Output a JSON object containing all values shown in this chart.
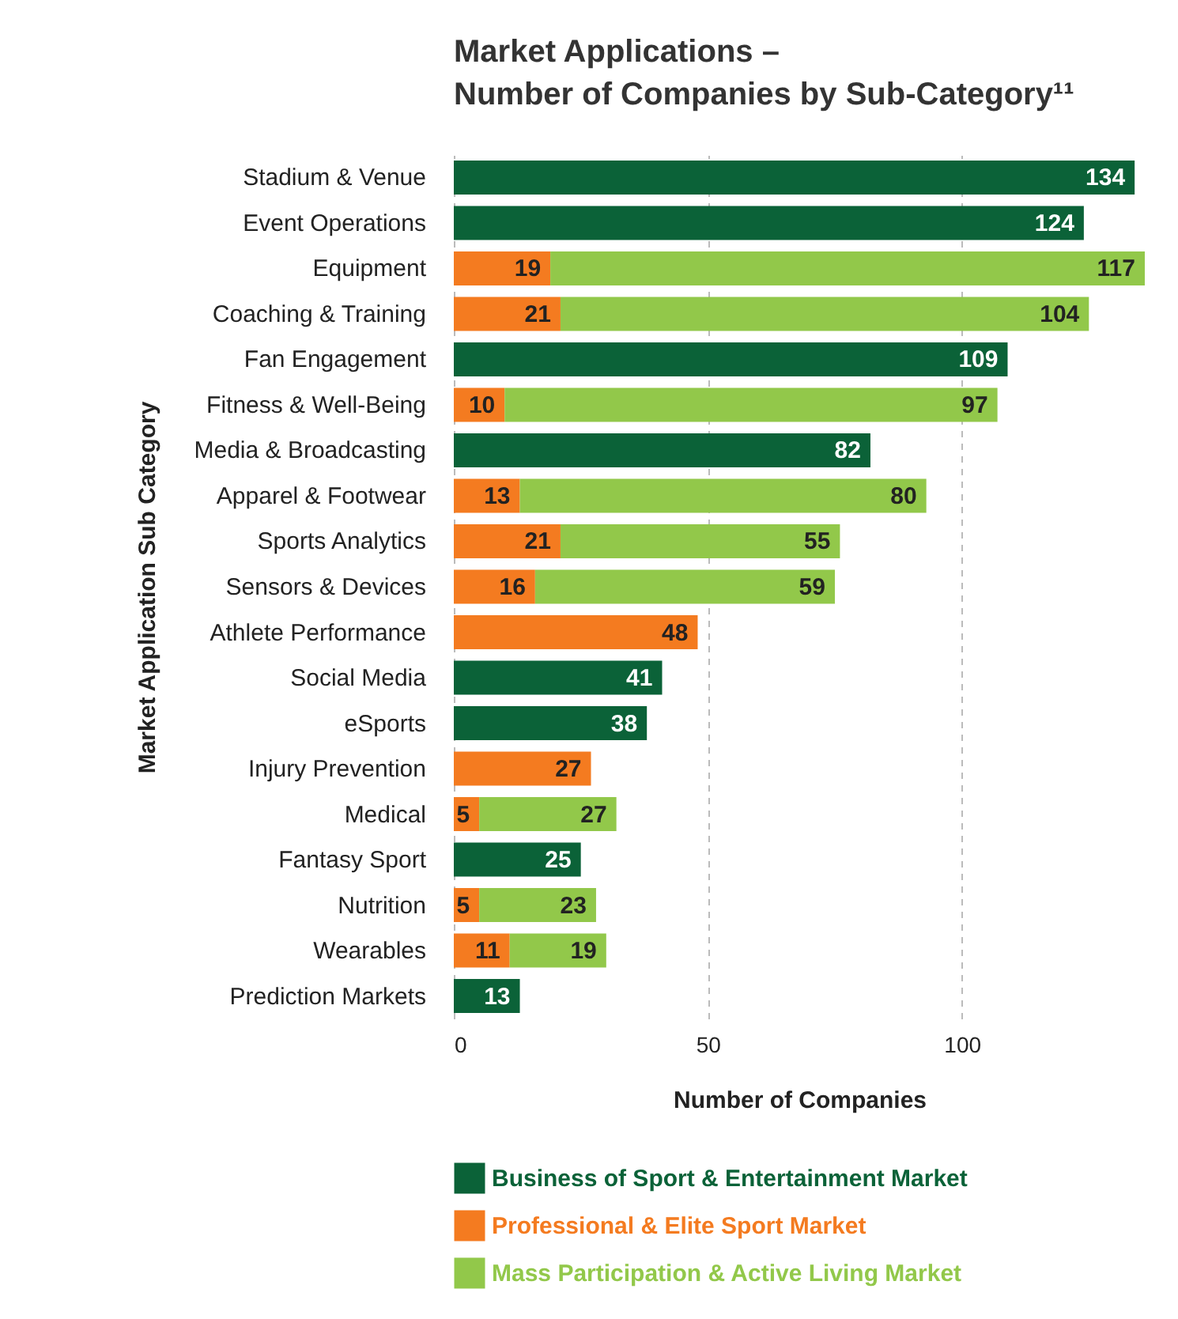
{
  "chart_data": {
    "type": "bar",
    "orientation": "horizontal",
    "stacked": true,
    "title": "Market Applications –\nNumber of Companies by Sub-Category¹¹",
    "xlabel": "Number of Companies",
    "ylabel": "Market Application Sub Category",
    "categories": [
      "Stadium & Venue",
      "Event Operations",
      "Equipment",
      "Coaching & Training",
      "Fan Engagement",
      "Fitness & Well-Being",
      "Media & Broadcasting",
      "Apparel & Footwear",
      "Sports Analytics",
      "Sensors & Devices",
      "Athlete Performance",
      "Social Media",
      "eSports",
      "Injury Prevention",
      "Medical",
      "Fantasy Sport",
      "Nutrition",
      "Wearables",
      "Prediction Markets"
    ],
    "series": [
      {
        "name": "Business of Sport & Entertainment Market",
        "color": "#0b6238",
        "values": [
          134,
          124,
          null,
          null,
          109,
          null,
          82,
          null,
          null,
          null,
          null,
          41,
          38,
          null,
          null,
          25,
          null,
          null,
          13
        ]
      },
      {
        "name": "Professional & Elite Sport Market",
        "color": "#f47b20",
        "values": [
          null,
          null,
          19,
          21,
          null,
          10,
          null,
          13,
          21,
          16,
          48,
          null,
          null,
          27,
          5,
          null,
          5,
          11,
          null
        ]
      },
      {
        "name": "Mass Participation & Active Living Market",
        "color": "#92c84a",
        "values": [
          null,
          null,
          117,
          104,
          null,
          97,
          null,
          80,
          55,
          59,
          null,
          null,
          null,
          null,
          27,
          null,
          23,
          19,
          null
        ]
      }
    ],
    "xlim": [
      0,
      136
    ],
    "xticks": [
      0,
      50,
      100
    ],
    "grid": "x",
    "data_labels": true,
    "legend": "bottom"
  }
}
